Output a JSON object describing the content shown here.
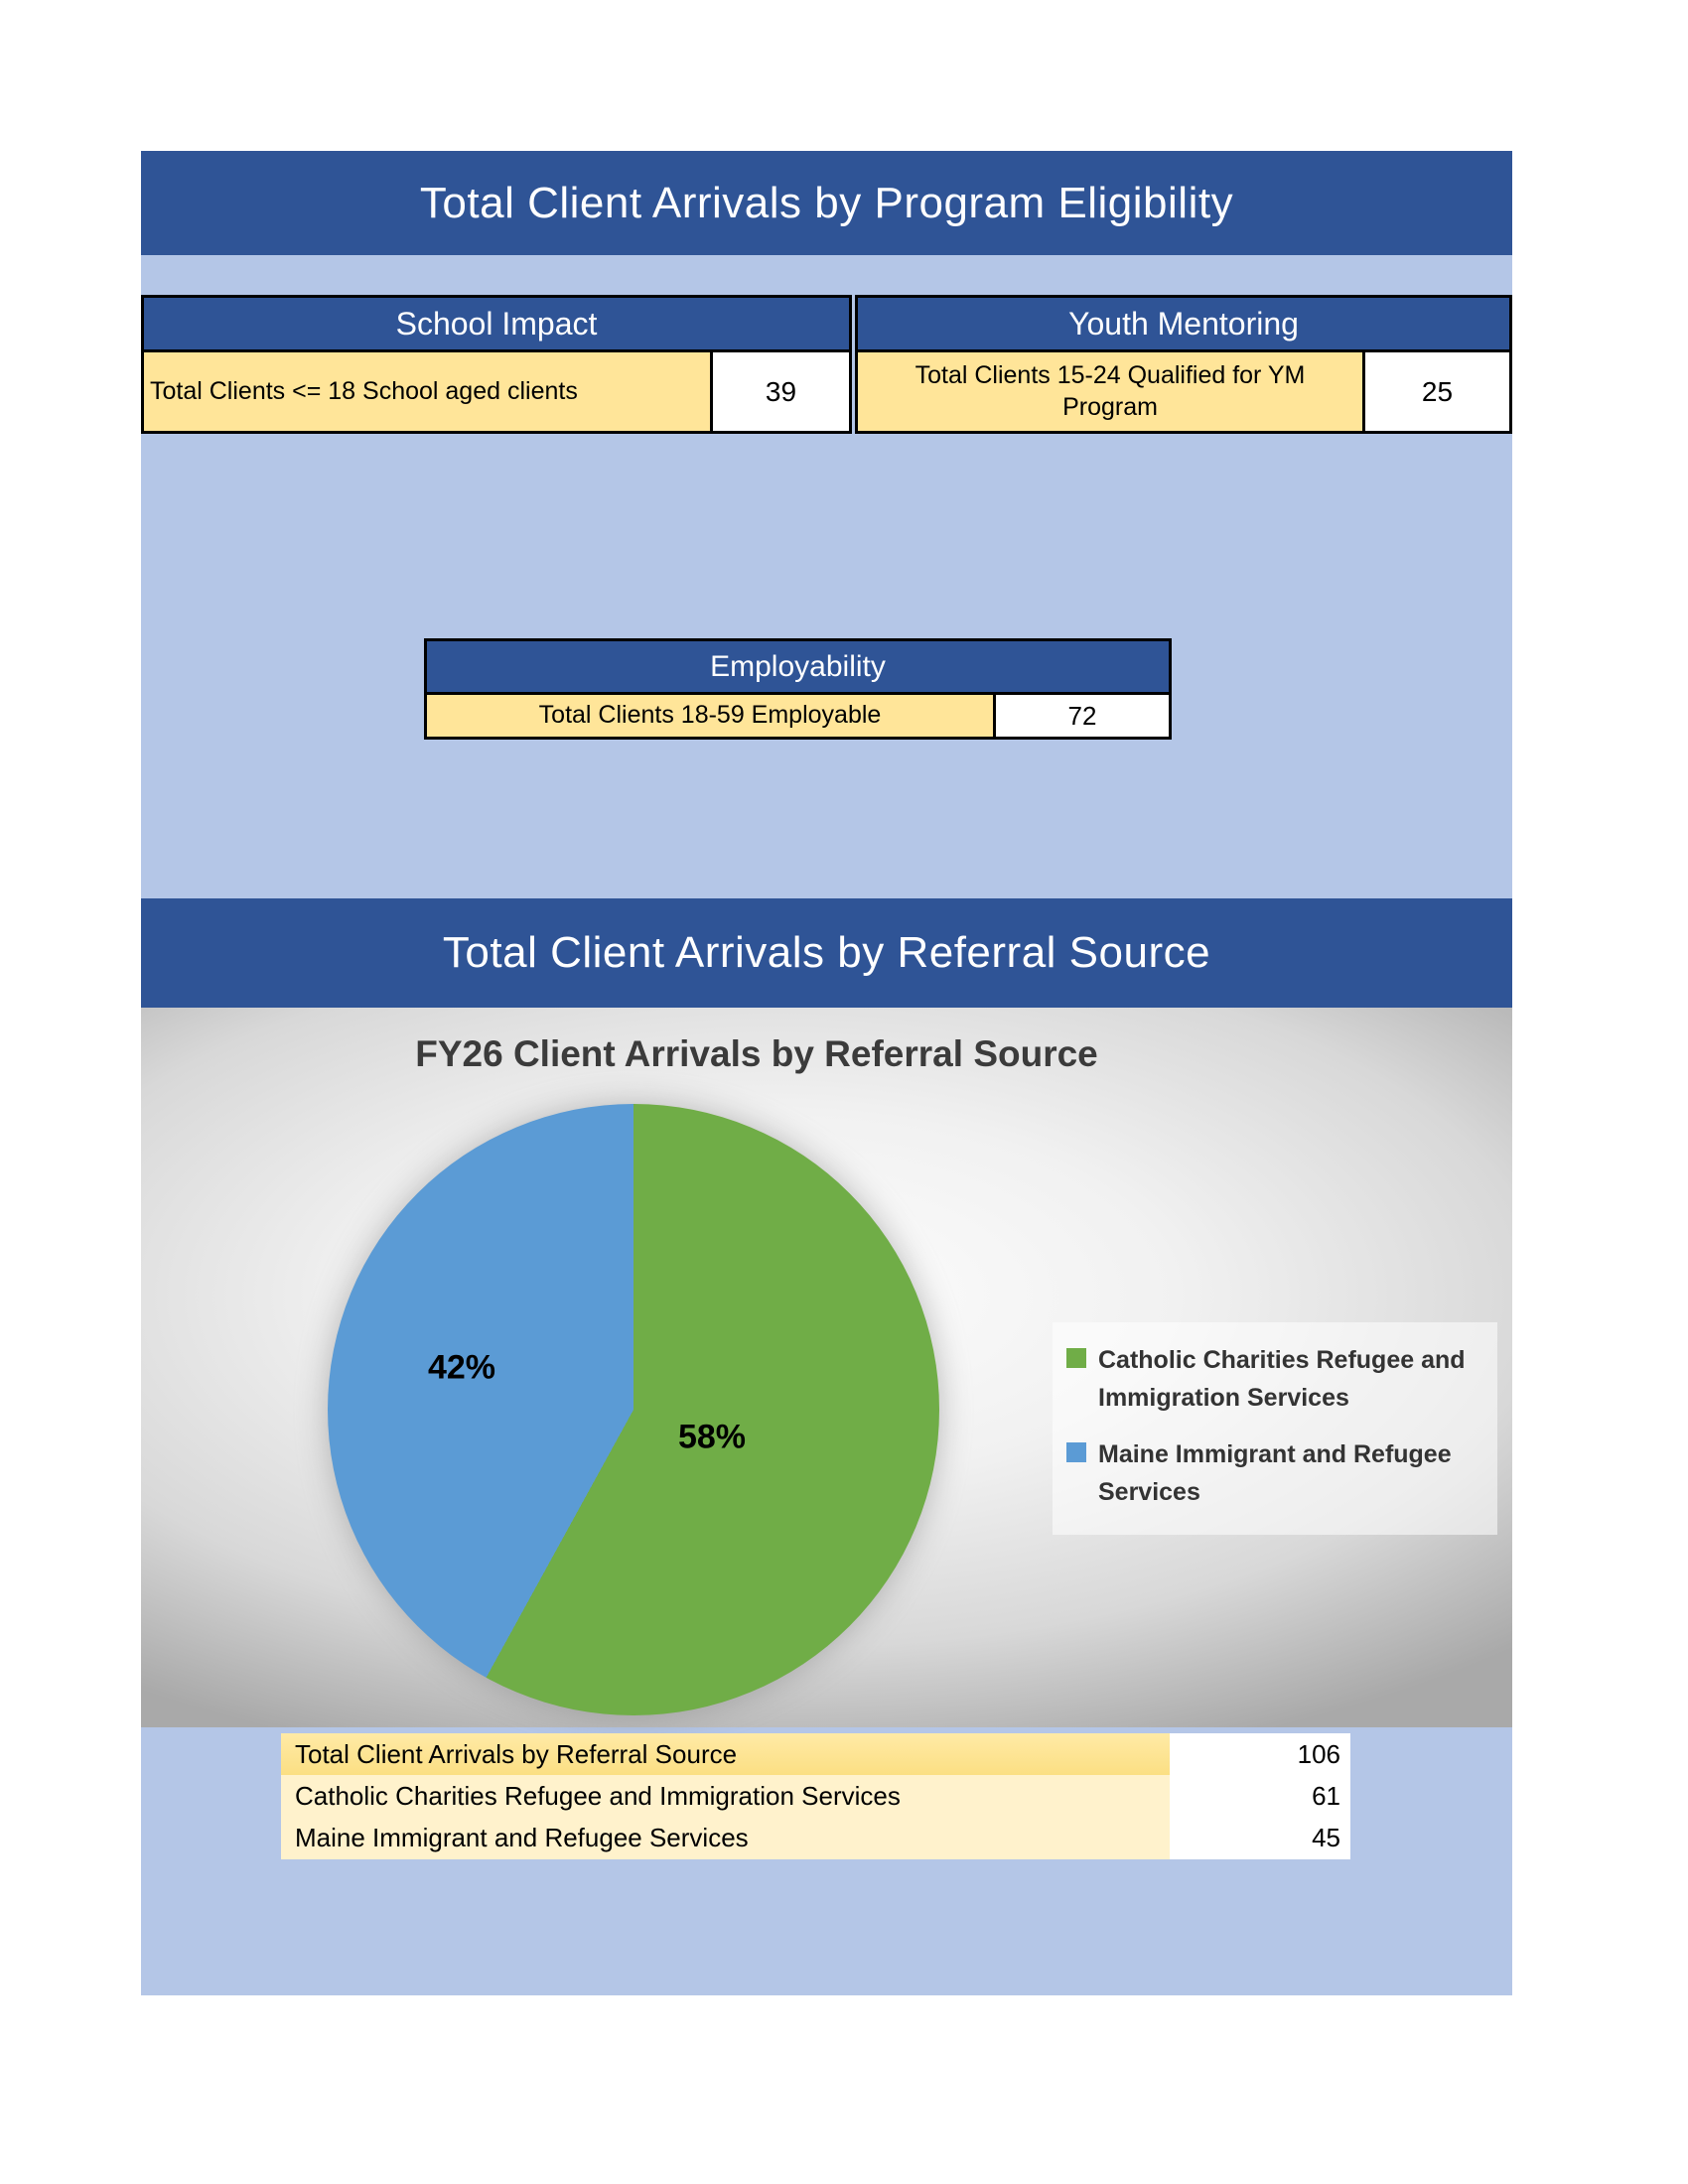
{
  "colors": {
    "dark_blue": "#2F5496",
    "light_blue": "#B4C6E7",
    "label_yellow": "#FFE599",
    "summary_total_yellow": "#FFE699",
    "summary_detail_yellow": "#FFF2CC",
    "pie_green": "#70AD47",
    "pie_blue": "#5B9BD5",
    "chart_title_gray": "#3B3B3B"
  },
  "program_section": {
    "title": "Total Client Arrivals by Program Eligibility",
    "school_impact": {
      "header": "School Impact",
      "row": {
        "label": "Total Clients <= 18 School aged clients",
        "value": "39"
      }
    },
    "youth_mentoring": {
      "header": "Youth Mentoring",
      "row": {
        "label": "Total Clients 15-24 Qualified for YM Program",
        "value": "25"
      }
    },
    "employability": {
      "header": "Employability",
      "row": {
        "label": "Total Clients 18-59 Employable",
        "value": "72"
      }
    }
  },
  "referral_section": {
    "title": "Total Client Arrivals by Referral Source",
    "summary_rows": [
      {
        "label": "Total Client  Arrivals by Referral Source",
        "value": "106"
      },
      {
        "label": "Catholic Charities Refugee and Immigration Services",
        "value": "61"
      },
      {
        "label": "Maine Immigrant and Refugee Services",
        "value": "45"
      }
    ]
  },
  "chart_data": {
    "type": "pie",
    "title": "FY26 Client Arrivals by Referral Source",
    "slices": [
      {
        "label": "Catholic Charities Refugee and Immigration Services",
        "value": 61,
        "percent": "58%",
        "color": "#70AD47"
      },
      {
        "label": "Maine Immigrant and Refugee Services",
        "value": 45,
        "percent": "42%",
        "color": "#5B9BD5"
      }
    ],
    "total": 106,
    "start_angle_deg": 0,
    "direction": "clockwise",
    "data_labels": "percent",
    "legend_position": "right"
  }
}
